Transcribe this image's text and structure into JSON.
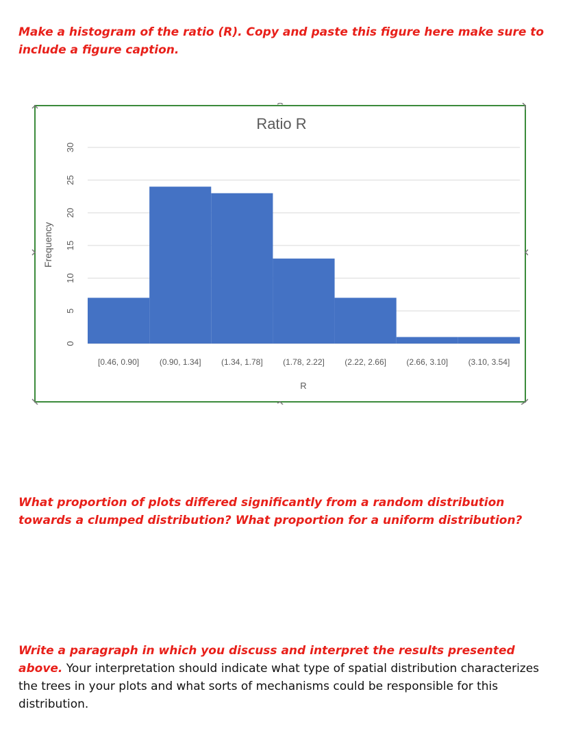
{
  "document": {
    "question_1": "Make a histogram of the ratio (R). Copy and paste this figure here make sure to include a figure caption.",
    "question_2": "What proportion of plots differed significantly from a random distribution towards a clumped distribution? What proportion for a uniform distribution?",
    "question_3_lead": "Write a paragraph in which you discuss and interpret the results presented above.",
    "question_3_body": " Your interpretation should indicate what type of spatial distribution characterizes the trees in your plots and what sorts of mechanisms could be responsible for this distribution."
  },
  "colors": {
    "prompt_red": "#e8201a",
    "bar_blue": "#4472c4",
    "gridline": "#d9d9d9",
    "frame_green": "#3a8a3a"
  },
  "chart_data": {
    "type": "bar",
    "title": "Ratio R",
    "xlabel": "R",
    "ylabel": "Frequency",
    "categories": [
      "[0.46, 0.90]",
      "(0.90, 1.34]",
      "(1.34, 1.78]",
      "(1.78, 2.22]",
      "(2.22, 2.66]",
      "(2.66, 3.10]",
      "(3.10, 3.54]"
    ],
    "values": [
      7,
      24,
      23,
      13,
      7,
      1,
      1
    ],
    "ylim": [
      0,
      30
    ],
    "yticks": [
      0,
      5,
      10,
      15,
      20,
      25,
      30
    ],
    "grid": true,
    "legend": "none"
  }
}
